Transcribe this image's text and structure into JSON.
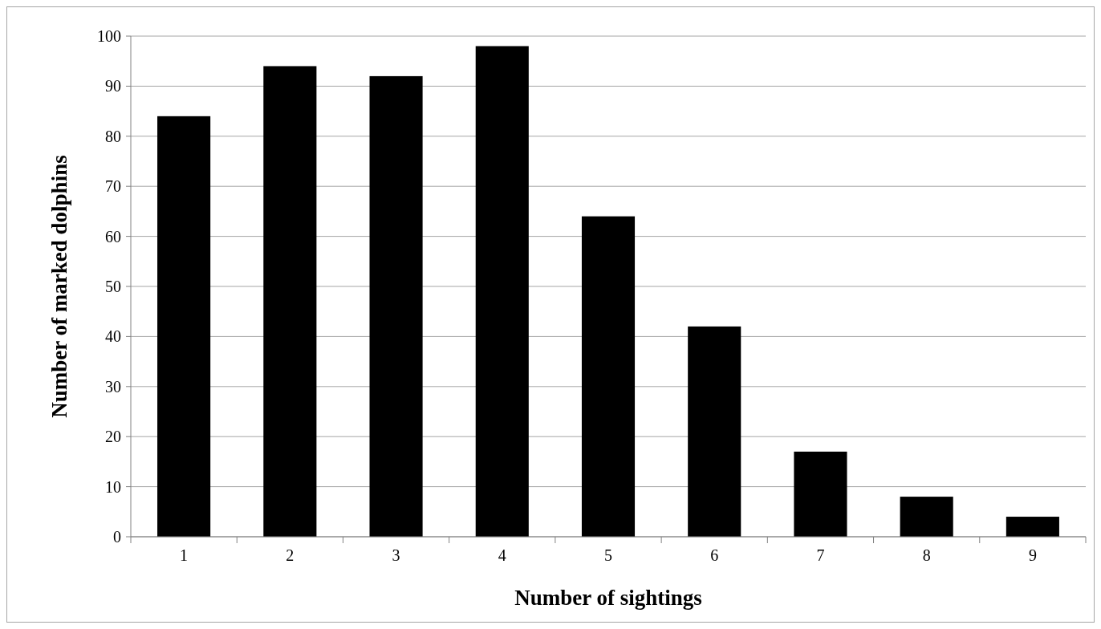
{
  "chart_data": {
    "type": "bar",
    "xlabel": "Number of sightings",
    "ylabel": "Number of marked dolphins",
    "categories": [
      "1",
      "2",
      "3",
      "4",
      "5",
      "6",
      "7",
      "8",
      "9"
    ],
    "values": [
      84,
      94,
      92,
      98,
      64,
      42,
      17,
      8,
      4
    ],
    "color": "#000000",
    "ylim": [
      0,
      100
    ],
    "yticks": [
      0,
      10,
      20,
      30,
      40,
      50,
      60,
      70,
      80,
      90,
      100
    ],
    "grid": "y"
  }
}
